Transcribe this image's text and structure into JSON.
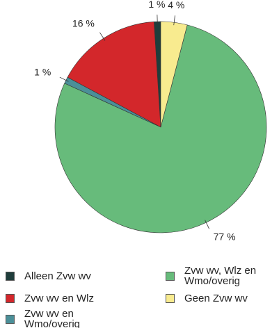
{
  "chart_data": {
    "type": "pie",
    "categories": [
      "Alleen Zvw wv",
      "Zvw wv en Wlz",
      "Zvw wv en Wmo/overig",
      "Zvw wv, Wlz en Wmo/overig",
      "Geen Zvw wv"
    ],
    "values": [
      1,
      16,
      1,
      77,
      4
    ],
    "value_labels": [
      "1 %",
      "16 %",
      "1 %",
      "77 %",
      "4 %"
    ],
    "colors": [
      "#1f3d3b",
      "#d3272b",
      "#4b8f98",
      "#67bb7b",
      "#f8eb8f"
    ]
  }
}
